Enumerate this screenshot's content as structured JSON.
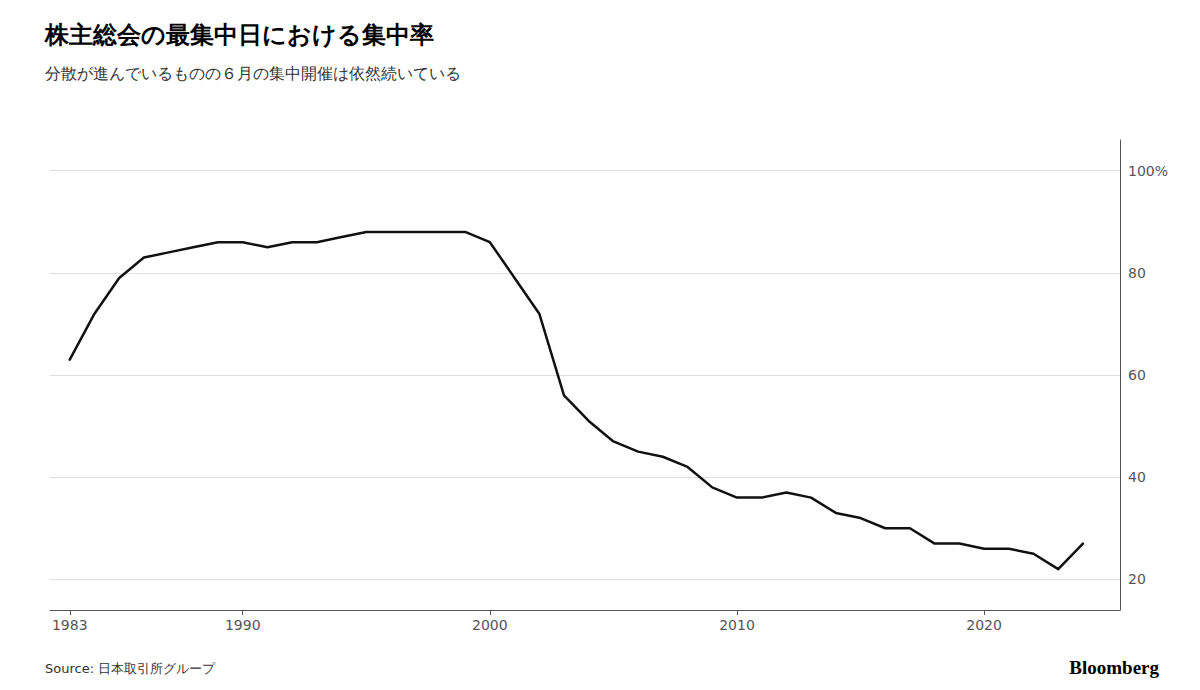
{
  "chart_data": {
    "type": "line",
    "title": "株主総会の最集中日における集中率",
    "subtitle": "分散が進んでいるものの６月の集中開催は依然続いている",
    "annotations": [
      "Source: 日本取引所グループ",
      "Bloomberg"
    ],
    "x": [
      1983,
      1984,
      1985,
      1986,
      1987,
      1988,
      1989,
      1990,
      1991,
      1992,
      1993,
      1994,
      1995,
      1996,
      1997,
      1998,
      1999,
      2000,
      2001,
      2002,
      2003,
      2004,
      2005,
      2006,
      2007,
      2008,
      2009,
      2010,
      2011,
      2012,
      2013,
      2014,
      2015,
      2016,
      2017,
      2018,
      2019,
      2020,
      2021,
      2022,
      2023,
      2024
    ],
    "values": [
      63,
      72,
      79,
      83,
      84,
      85,
      86,
      86,
      85,
      86,
      86,
      87,
      88,
      88,
      88,
      88,
      88,
      86,
      79,
      72,
      56,
      51,
      47,
      45,
      44,
      42,
      38,
      36,
      36,
      37,
      36,
      33,
      32,
      30,
      30,
      27,
      27,
      26,
      26,
      25,
      22,
      27
    ],
    "color": "#111111",
    "xlim": [
      1982.2,
      2025.5
    ],
    "xticks": [
      1983,
      1990,
      2000,
      2010,
      2020
    ],
    "ylim": [
      14,
      106
    ],
    "yticks": [
      20,
      40,
      60,
      80,
      {
        "value": 100,
        "label": "100%"
      }
    ],
    "grid": true
  }
}
